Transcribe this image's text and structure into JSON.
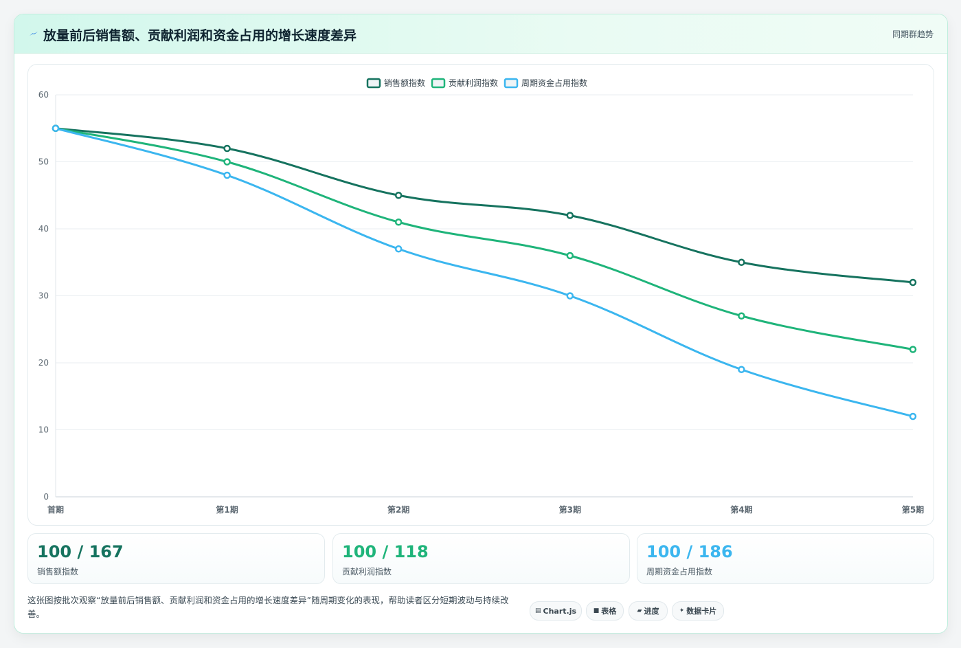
{
  "header": {
    "title": "放量前后销售额、贡献利润和资金占用的增长速度差异",
    "tag": "同期群趋势",
    "icon": "lightning-icon"
  },
  "chart_data": {
    "type": "line",
    "categories": [
      "首期",
      "第1期",
      "第2期",
      "第3期",
      "第4期",
      "第5期"
    ],
    "series": [
      {
        "name": "销售额指数",
        "values": [
          55,
          52,
          45,
          42,
          35,
          32
        ],
        "color": "#16735f"
      },
      {
        "name": "贡献利润指数",
        "values": [
          55,
          50,
          41,
          36,
          27,
          22
        ],
        "color": "#1fb47a"
      },
      {
        "name": "周期资金占用指数",
        "values": [
          55,
          48,
          37,
          30,
          19,
          12
        ],
        "color": "#3bb6ef"
      }
    ],
    "ylim": [
      0,
      60
    ],
    "yticks": [
      0,
      10,
      20,
      30,
      40,
      50,
      60
    ],
    "grid": true,
    "legend": "top-center",
    "xlabel": "",
    "ylabel": ""
  },
  "stats": [
    {
      "value": "100 / 167",
      "label": "销售额指数",
      "color": "#16735f"
    },
    {
      "value": "100 / 118",
      "label": "贡献利润指数",
      "color": "#1fb47a"
    },
    {
      "value": "100 / 186",
      "label": "周期资金占用指数",
      "color": "#3bb6ef"
    }
  ],
  "description": "这张图按批次观察“放量前后销售额、贡献利润和资金占用的增长速度差异”随周期变化的表现，帮助读者区分短期波动与持续改善。",
  "chips": [
    {
      "label": "Chart.js",
      "icon": "▤"
    },
    {
      "label": "表格",
      "icon": "■"
    },
    {
      "label": "进度",
      "icon": "▰"
    },
    {
      "label": "数据卡片",
      "icon": "✦"
    }
  ]
}
